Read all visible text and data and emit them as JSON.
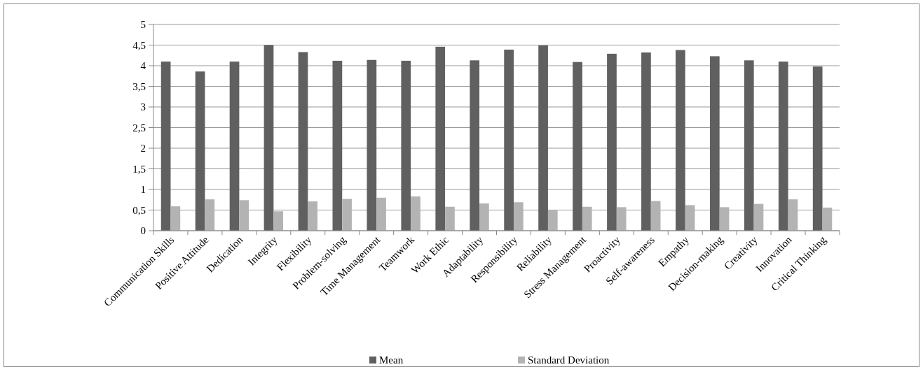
{
  "chart_data": {
    "type": "bar",
    "categories": [
      "Communication Skills",
      "Positive Attitude",
      "Dedication",
      "Integrity",
      "Flexibility",
      "Problem-solving",
      "Time Management",
      "Teamwork",
      "Work Ethic",
      "Adaptability",
      "Responsibility",
      "Reliability",
      "Stress Management",
      "Proactivity",
      "Self-awareness",
      "Empathy",
      "Decision-making",
      "Creativity",
      "Innovation",
      "Critical Thinking"
    ],
    "series": [
      {
        "name": "Mean",
        "color": "#606060",
        "values": [
          4.1,
          3.86,
          4.1,
          4.5,
          4.33,
          4.12,
          4.14,
          4.12,
          4.46,
          4.13,
          4.39,
          4.49,
          4.09,
          4.29,
          4.32,
          4.38,
          4.23,
          4.13,
          4.1,
          3.98
        ]
      },
      {
        "name": "Standard Deviation",
        "color": "#b3b3b3",
        "values": [
          0.59,
          0.76,
          0.74,
          0.47,
          0.71,
          0.77,
          0.8,
          0.83,
          0.58,
          0.66,
          0.69,
          0.51,
          0.58,
          0.57,
          0.72,
          0.62,
          0.57,
          0.65,
          0.76,
          0.56
        ]
      }
    ],
    "ylim": [
      0,
      5
    ],
    "yticks": [
      0,
      {
        "value": 0.5,
        "label": "0,5"
      },
      1,
      {
        "value": 1.5,
        "label": "1,5"
      },
      2,
      {
        "value": 2.5,
        "label": "2,5"
      },
      3,
      {
        "value": 3.5,
        "label": "3,5"
      },
      4,
      {
        "value": 4.5,
        "label": "4,5"
      },
      5
    ],
    "grid": "y",
    "legend": "bottom"
  }
}
